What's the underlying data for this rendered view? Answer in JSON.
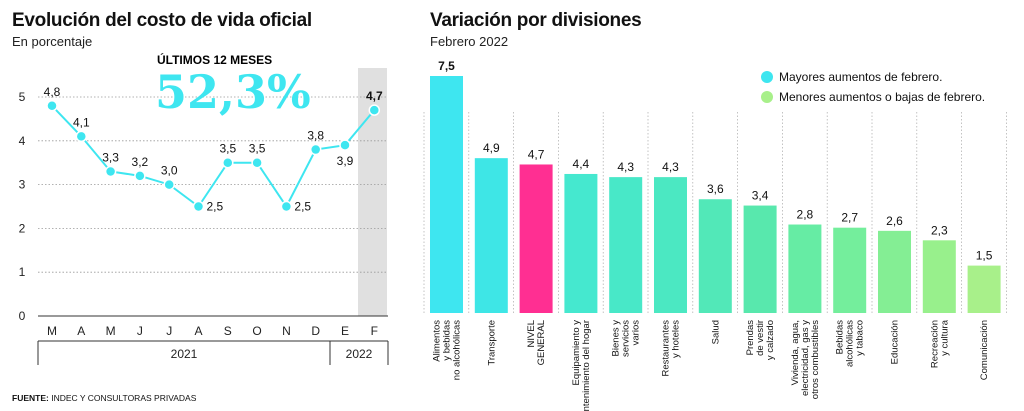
{
  "left": {
    "title": "Evolución del costo de vida oficial",
    "subtitle": "En porcentaje",
    "kicker": "ÚLTIMOS 12 MESES",
    "big_value": "52,3%",
    "years": [
      "2021",
      "2022"
    ]
  },
  "right": {
    "title": "Variación por divisiones",
    "subtitle": "Febrero 2022",
    "legend": [
      {
        "label": "Mayores aumentos de febrero.",
        "color": "#3ee6f0"
      },
      {
        "label": "Menores aumentos o bajas de febrero.",
        "color": "#a8f08a"
      }
    ]
  },
  "source": {
    "label": "FUENTE:",
    "text": " INDEC Y CONSULTORAS PRIVADAS"
  },
  "chart_data": [
    {
      "type": "line",
      "title": "Evolución del costo de vida oficial",
      "ylabel": "En porcentaje",
      "ylim": [
        0,
        5
      ],
      "yticks": [
        "0",
        "1",
        "2",
        "3",
        "4",
        "5"
      ],
      "categories": [
        "M",
        "A",
        "M",
        "J",
        "J",
        "A",
        "S",
        "O",
        "N",
        "D",
        "E",
        "F"
      ],
      "values": [
        4.8,
        4.1,
        3.3,
        3.2,
        3.0,
        2.5,
        3.5,
        3.5,
        2.5,
        3.8,
        3.9,
        4.7
      ],
      "labels": [
        "4,8",
        "4,1",
        "3,3",
        "3,2",
        "3,0",
        "2,5",
        "3,5",
        "3,5",
        "2,5",
        "3,8",
        "3,9",
        "4,7"
      ],
      "line_color": "#3ee6f0",
      "highlight_index": 11
    },
    {
      "type": "bar",
      "title": "Variación por divisiones",
      "categories": [
        [
          "Alimentos",
          "y bebidas",
          "no alcohólicas"
        ],
        [
          "Transporte"
        ],
        [
          "NIVEL",
          "GENERAL"
        ],
        [
          "Equipamiento y",
          "mantenimiento del hogar"
        ],
        [
          "Bienes y",
          "servicios",
          "varios"
        ],
        [
          "Restaurantes",
          "y hoteles"
        ],
        [
          "Salud"
        ],
        [
          "Prendas",
          "de vestir",
          "y calzado"
        ],
        [
          "Vivienda, agua,",
          "electricidad, gas y",
          "otros combustibles"
        ],
        [
          "Bebidas",
          "alcohólicas",
          "y tabaco"
        ],
        [
          "Educación"
        ],
        [
          "Recreación",
          "y cultura"
        ],
        [
          "Comunicación"
        ]
      ],
      "values": [
        7.5,
        4.9,
        4.7,
        4.4,
        4.3,
        4.3,
        3.6,
        3.4,
        2.8,
        2.7,
        2.6,
        2.3,
        1.5
      ],
      "labels": [
        "7,5",
        "4,9",
        "4,7",
        "4,4",
        "4,3",
        "4,3",
        "3,6",
        "3,4",
        "2,8",
        "2,7",
        "2,6",
        "2,3",
        "1,5"
      ],
      "colors": [
        "#3ee6f0",
        "#3ee6e6",
        "#ff2f92",
        "#45e8cf",
        "#48e8c8",
        "#4be8c2",
        "#52e8b8",
        "#58e8ad",
        "#66eca4",
        "#74ee9c",
        "#84ee94",
        "#98f08c",
        "#a8f08a"
      ],
      "ylim": [
        0,
        7.5
      ]
    }
  ]
}
